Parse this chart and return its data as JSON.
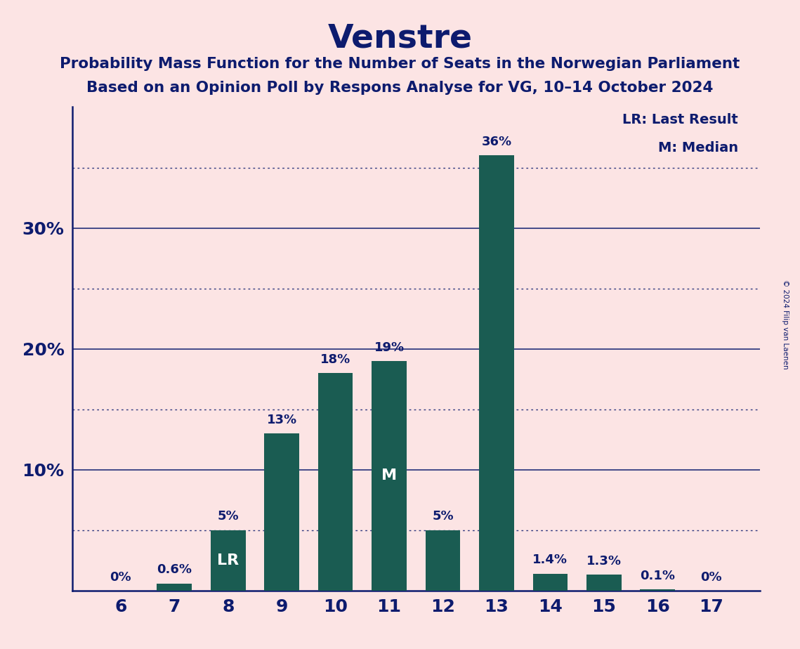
{
  "title": "Venstre",
  "subtitle1": "Probability Mass Function for the Number of Seats in the Norwegian Parliament",
  "subtitle2": "Based on an Opinion Poll by Respons Analyse for VG, 10–14 October 2024",
  "copyright": "© 2024 Filip van Laenen",
  "categories": [
    6,
    7,
    8,
    9,
    10,
    11,
    12,
    13,
    14,
    15,
    16,
    17
  ],
  "values": [
    0.0,
    0.6,
    5.0,
    13.0,
    18.0,
    19.0,
    5.0,
    36.0,
    1.4,
    1.3,
    0.1,
    0.0
  ],
  "pct_labels": [
    "0%",
    "0.6%",
    "5%",
    "13%",
    "18%",
    "19%",
    "5%",
    "36%",
    "1.4%",
    "1.3%",
    "0.1%",
    "0%"
  ],
  "bar_color": "#1a5c52",
  "background_color": "#fce4e4",
  "text_color": "#0d1b6e",
  "lr_index": 2,
  "median_index": 5,
  "dotted_line_color": "#0d1b6e",
  "yticks": [
    10,
    20,
    30
  ],
  "ylim": [
    0,
    40
  ],
  "dotted_yticks": [
    5,
    15,
    25,
    35
  ],
  "legend_lr": "LR: Last Result",
  "legend_m": "M: Median"
}
